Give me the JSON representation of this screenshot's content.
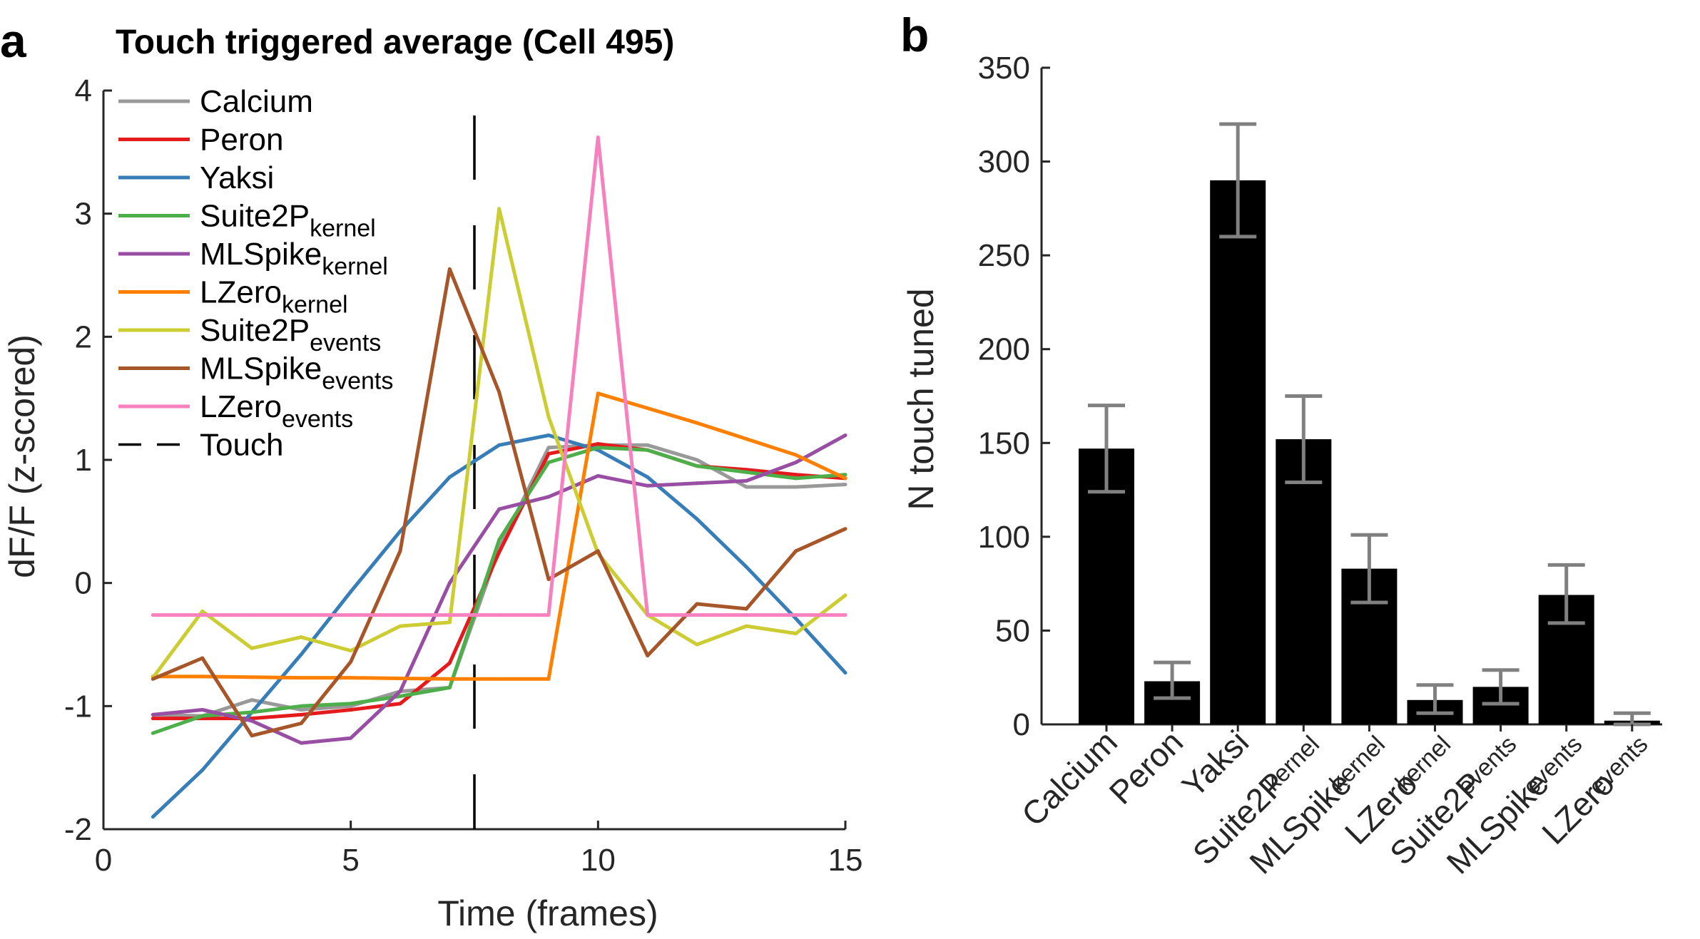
{
  "panels": {
    "a": "a",
    "b": "b"
  },
  "chart_data": [
    {
      "type": "line",
      "title": "Touch triggered average (Cell 495)",
      "xlabel": "Time (frames)",
      "ylabel": "dF/F (z-scored)",
      "xlim": [
        0,
        15
      ],
      "ylim": [
        -2,
        4
      ],
      "xticks": [
        "0",
        "5",
        "10",
        "15"
      ],
      "yticks": [
        "-2",
        "-1",
        "0",
        "1",
        "2",
        "3",
        "4"
      ],
      "grid": false,
      "legend_position": "top-left",
      "x": [
        1,
        2,
        3,
        4,
        5,
        6,
        7,
        8,
        9,
        10,
        11,
        12,
        13,
        14,
        15
      ],
      "series": [
        {
          "name": "Calcium",
          "sub": "",
          "color": "#999999",
          "values": [
            -1.07,
            -1.08,
            -0.95,
            -1.03,
            -1.0,
            -0.88,
            -0.85,
            0.28,
            1.1,
            1.12,
            1.12,
            1.0,
            0.78,
            0.78,
            0.8
          ]
        },
        {
          "name": "Peron",
          "sub": "",
          "color": "#E41A1C",
          "values": [
            -1.1,
            -1.1,
            -1.1,
            -1.07,
            -1.03,
            -0.98,
            -0.65,
            0.25,
            1.05,
            1.13,
            1.08,
            0.95,
            0.92,
            0.88,
            0.85
          ]
        },
        {
          "name": "Yaksi",
          "sub": "",
          "color": "#377EB8",
          "values": [
            -1.9,
            -1.52,
            -1.05,
            -0.58,
            -0.07,
            0.42,
            0.86,
            1.12,
            1.2,
            1.08,
            0.86,
            0.52,
            0.13,
            -0.29,
            -0.73
          ]
        },
        {
          "name": "Suite2P",
          "sub": "kernel",
          "color": "#4DAF4A",
          "values": [
            -1.22,
            -1.08,
            -1.05,
            -1.0,
            -0.98,
            -0.92,
            -0.85,
            0.35,
            0.98,
            1.1,
            1.08,
            0.95,
            0.9,
            0.85,
            0.88
          ]
        },
        {
          "name": "MLSpike",
          "sub": "kernel",
          "color": "#984EA3",
          "values": [
            -1.07,
            -1.03,
            -1.12,
            -1.3,
            -1.26,
            -0.88,
            0.0,
            0.6,
            0.7,
            0.87,
            0.79,
            0.81,
            0.83,
            0.98,
            1.2
          ]
        },
        {
          "name": "LZero",
          "sub": "kernel",
          "color": "#FF7F00",
          "values": [
            -0.76,
            -0.76,
            -0.765,
            -0.77,
            -0.77,
            -0.775,
            -0.78,
            -0.78,
            -0.78,
            1.54,
            1.42,
            1.3,
            1.17,
            1.04,
            0.85
          ]
        },
        {
          "name": "Suite2P",
          "sub": "events",
          "color": "#CCCC33",
          "values": [
            -0.77,
            -0.23,
            -0.53,
            -0.44,
            -0.55,
            -0.35,
            -0.32,
            3.04,
            1.35,
            0.24,
            -0.26,
            -0.5,
            -0.35,
            -0.41,
            -0.1
          ]
        },
        {
          "name": "MLSpike",
          "sub": "events",
          "color": "#A65628",
          "values": [
            -0.78,
            -0.61,
            -1.24,
            -1.14,
            -0.64,
            0.26,
            2.55,
            1.55,
            0.03,
            0.26,
            -0.59,
            -0.17,
            -0.21,
            0.26,
            0.44
          ]
        },
        {
          "name": "LZero",
          "sub": "events",
          "color": "#F781BF",
          "values": [
            -0.26,
            -0.26,
            -0.26,
            -0.26,
            -0.26,
            -0.26,
            -0.26,
            -0.26,
            -0.26,
            3.62,
            -0.26,
            -0.26,
            -0.26,
            -0.26,
            -0.26
          ]
        }
      ],
      "reference_line": {
        "name": "Touch",
        "x": 7.5,
        "style": "dashed",
        "color": "#000000"
      }
    },
    {
      "type": "bar",
      "xlabel": "",
      "ylabel": "N touch tuned",
      "ylim": [
        0,
        350
      ],
      "yticks": [
        "0",
        "50",
        "100",
        "150",
        "200",
        "250",
        "300",
        "350"
      ],
      "categories": [
        {
          "name": "Calcium",
          "sub": ""
        },
        {
          "name": "Peron",
          "sub": ""
        },
        {
          "name": "Yaksi",
          "sub": ""
        },
        {
          "name": "Suite2P",
          "sub": "kernel"
        },
        {
          "name": "MLSpike",
          "sub": "kernel"
        },
        {
          "name": "LZero",
          "sub": "kernel"
        },
        {
          "name": "Suite2P",
          "sub": "events"
        },
        {
          "name": "MLSpike",
          "sub": "events"
        },
        {
          "name": "LZero",
          "sub": "events"
        }
      ],
      "values": [
        147,
        23,
        290,
        152,
        83,
        13,
        20,
        69,
        2
      ],
      "error_low": [
        124,
        14,
        260,
        129,
        65,
        6,
        11,
        54,
        0
      ],
      "error_high": [
        170,
        33,
        320,
        175,
        101,
        21,
        29,
        85,
        6
      ],
      "bar_color": "#000000",
      "error_color": "#808080"
    }
  ]
}
